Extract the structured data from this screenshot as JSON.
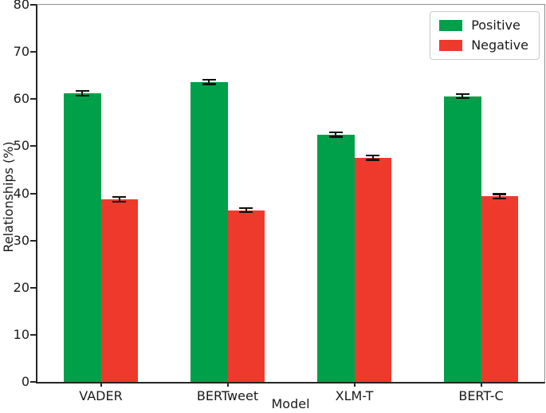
{
  "chart_data": {
    "type": "bar",
    "xlabel": "Model",
    "ylabel": "Relationships (%)",
    "categories": [
      "VADER",
      "BERTweet",
      "XLM-T",
      "BERT-C"
    ],
    "series": [
      {
        "name": "Positive",
        "color": "#00a04a",
        "values": [
          61.2,
          63.6,
          52.5,
          60.6
        ],
        "errors": [
          0.3,
          0.25,
          0.3,
          0.25
        ]
      },
      {
        "name": "Negative",
        "color": "#ee3a2c",
        "values": [
          38.7,
          36.4,
          47.6,
          39.4
        ],
        "errors": [
          0.3,
          0.25,
          0.3,
          0.25
        ]
      }
    ],
    "ylim": [
      0,
      80
    ],
    "yticks": [
      0,
      10,
      20,
      30,
      40,
      50,
      60,
      70,
      80
    ],
    "grid": false,
    "legend_position": "upper right",
    "error_bar_color": "#111111",
    "axis_color": "#262626"
  }
}
